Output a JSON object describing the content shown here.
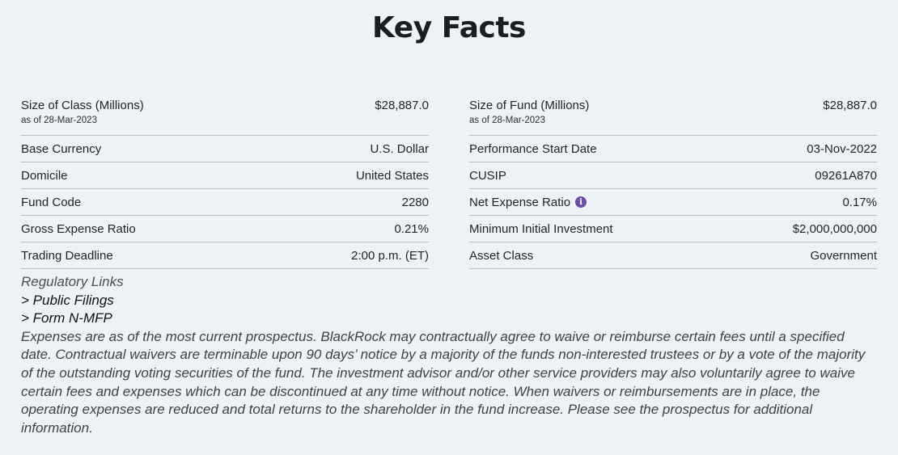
{
  "title": "Key Facts",
  "left_rows": [
    {
      "label": "Size of Class (Millions)",
      "sub": "as of 28-Mar-2023",
      "value": "$28,887.0"
    },
    {
      "label": "Base Currency",
      "value": "U.S. Dollar"
    },
    {
      "label": "Domicile",
      "value": "United States"
    },
    {
      "label": "Fund Code",
      "value": "2280"
    },
    {
      "label": "Gross Expense Ratio",
      "value": "0.21%"
    },
    {
      "label": "Trading Deadline",
      "value": "2:00 p.m. (ET)"
    }
  ],
  "right_rows": [
    {
      "label": "Size of Fund (Millions)",
      "sub": "as of 28-Mar-2023",
      "value": "$28,887.0"
    },
    {
      "label": "Performance Start Date",
      "value": "03-Nov-2022"
    },
    {
      "label": "CUSIP",
      "value": "09261A870"
    },
    {
      "label": "Net Expense Ratio",
      "value": "0.17%",
      "icon": "info-icon"
    },
    {
      "label": "Minimum Initial Investment",
      "value": "$2,000,000,000"
    },
    {
      "label": "Asset Class",
      "value": "Government"
    }
  ],
  "info_icon_glyph": "i",
  "info_icon_color": "#6b4ea0",
  "regulatory": {
    "heading": "Regulatory Links",
    "links": [
      "> Public Filings",
      "> Form N-MFP"
    ],
    "note": "Expenses are as of the most current prospectus. BlackRock may contractually agree to waive or reimburse certain fees until a specified date. Contractual waivers are terminable upon 90 days’ notice by a majority of the funds non-interested trustees or by a vote of the majority of the outstanding voting securities of the fund. The investment advisor and/or other service providers may also voluntarily agree to waive certain fees and expenses which can be discontinued at any time without notice. When waivers or reimbursements are in place, the operating expenses are reduced and total returns to the shareholder in the fund increase. Please see the prospectus for additional information."
  }
}
